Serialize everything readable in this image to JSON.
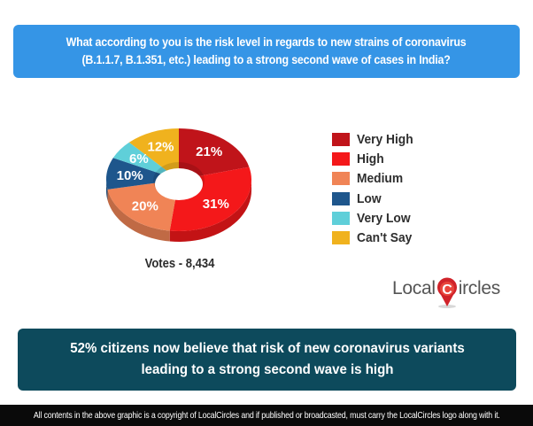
{
  "question": {
    "line1": "What according to you is the risk level in regards to new strains of coronavirus",
    "line2": "(B.1.1.7, B.1.351, etc.) leading to a strong second wave of cases in India?",
    "bg_color": "#3595e6"
  },
  "chart_data": {
    "type": "pie",
    "subtype": "3d-donut",
    "title": "What according to you is the risk level in regards to new strains of coronavirus (B.1.1.7, B.1.351, etc.) leading to a strong second wave of cases in India?",
    "categories": [
      "Very High",
      "High",
      "Medium",
      "Low",
      "Very Low",
      "Can't Say"
    ],
    "values": [
      21,
      31,
      20,
      10,
      6,
      12
    ],
    "labels": [
      "21%",
      "31%",
      "20%",
      "10%",
      "6%",
      "12%"
    ],
    "colors": [
      "#c0141a",
      "#f4181a",
      "#f08456",
      "#1e568c",
      "#5fcfd9",
      "#f0b21e"
    ],
    "unit": "%",
    "legend_position": "right",
    "votes_text": "Votes - 8,434",
    "total_votes": 8434
  },
  "legend": {
    "items": [
      {
        "label": "Very High",
        "color": "#c0141a"
      },
      {
        "label": "High",
        "color": "#f4181a"
      },
      {
        "label": "Medium",
        "color": "#f08456"
      },
      {
        "label": "Low",
        "color": "#1e568c"
      },
      {
        "label": "Very Low",
        "color": "#5fcfd9"
      },
      {
        "label": "Can't Say",
        "color": "#f0b21e"
      }
    ]
  },
  "votes": {
    "text": "Votes - 8,434"
  },
  "logo": {
    "part1": "Local",
    "part2": "ircles",
    "pin_letter": "C",
    "pin_color": "#d0232a"
  },
  "conclusion": {
    "line1": "52% citizens now believe that risk of new coronavirus variants",
    "line2": "leading to a strong second wave is high",
    "bg_color": "#0d4a5c"
  },
  "footer": {
    "text": "All contents in the above graphic is a copyright of LocalCircles and if published or broadcasted, must carry the LocalCircles logo along with it."
  }
}
